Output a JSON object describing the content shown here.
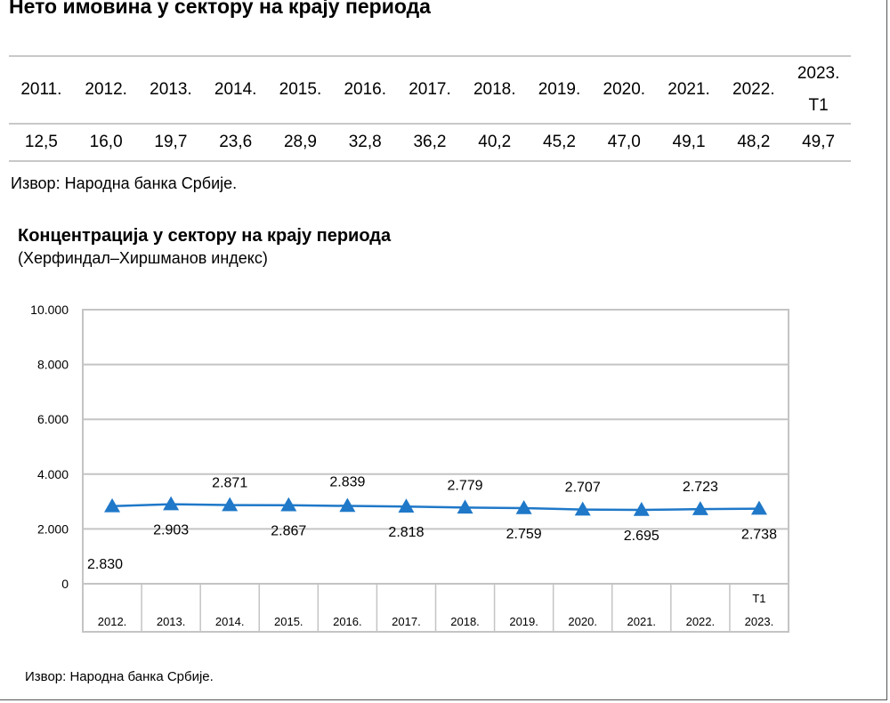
{
  "table": {
    "title": "Нето имовина у сектору на крају периода",
    "headers": [
      "2011.",
      "2012.",
      "2013.",
      "2014.",
      "2015.",
      "2016.",
      "2017.",
      "2018.",
      "2019.",
      "2020.",
      "2021.",
      "2022.",
      "2023.\nТ1"
    ],
    "values": [
      "12,5",
      "16,0",
      "19,7",
      "23,6",
      "28,9",
      "32,8",
      "36,2",
      "40,2",
      "45,2",
      "47,0",
      "49,1",
      "48,2",
      "49,7"
    ],
    "source": "Извор: Народна банка Србије."
  },
  "chart_data": {
    "type": "line",
    "title": "Концентрација у сектору на крају периода",
    "subtitle": "(Херфиндал–Хиршманов индекс)",
    "categories": [
      "2012.",
      "2013.",
      "2014.",
      "2015.",
      "2016.",
      "2017.",
      "2018.",
      "2019.",
      "2020.",
      "2021.",
      "2022.",
      "Т1\n2023."
    ],
    "series": [
      {
        "values": [
          2830,
          2903,
          2871,
          2867,
          2839,
          2818,
          2779,
          2759,
          2707,
          2695,
          2723,
          2738
        ],
        "labels": [
          "2.830",
          "2.903",
          "2.871",
          "2.867",
          "2.839",
          "2.818",
          "2.779",
          "2.759",
          "2.707",
          "2.695",
          "2.723",
          "2.738"
        ],
        "color": "#1f78c8"
      }
    ],
    "ylim": [
      0,
      10000
    ],
    "yticks": [
      0,
      2000,
      4000,
      6000,
      8000,
      10000
    ],
    "ytick_labels": [
      "0",
      "2.000",
      "4.000",
      "6.000",
      "8.000",
      "10.000"
    ],
    "grid": true,
    "marker": "triangle",
    "source": "Извор: Народна банка Србије."
  }
}
